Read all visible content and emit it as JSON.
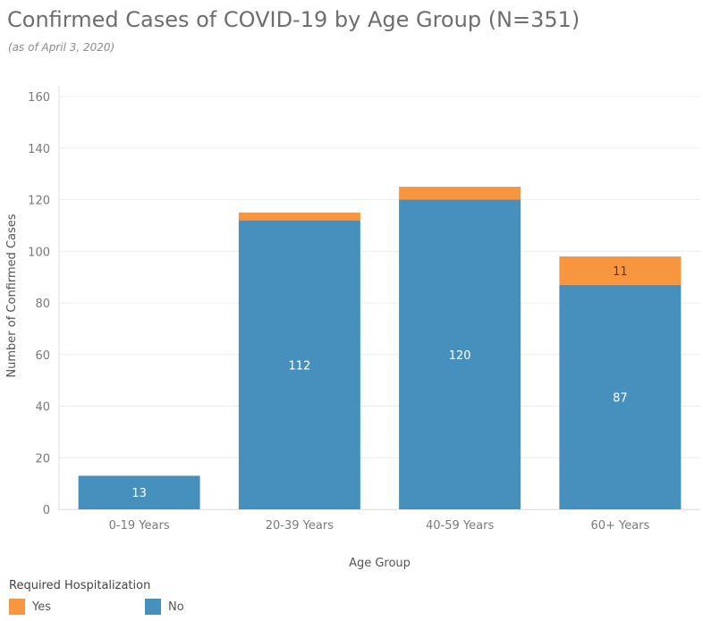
{
  "header": {
    "title": "Confirmed Cases of COVID-19 by Age Group (N=351)",
    "subtitle": "(as of April 3, 2020)"
  },
  "legend": {
    "title": "Required Hospitalization",
    "items": [
      {
        "label": "Yes",
        "color": "#f7963f"
      },
      {
        "label": "No",
        "color": "#4590bc"
      }
    ]
  },
  "colors": {
    "yes": "#f7963f",
    "no": "#4590bc",
    "grid": "#ececec"
  },
  "chart_data": {
    "type": "bar",
    "stacked": true,
    "title": "Confirmed Cases of COVID-19 by Age Group (N=351)",
    "subtitle": "(as of April 3, 2020)",
    "xlabel": "Age Group",
    "ylabel": "Number of Confirmed Cases",
    "categories": [
      "0-19 Years",
      "20-39 Years",
      "40-59 Years",
      "60+ Years"
    ],
    "series": [
      {
        "name": "No",
        "values": [
          13,
          112,
          120,
          87
        ]
      },
      {
        "name": "Yes",
        "values": [
          0,
          3,
          5,
          11
        ]
      }
    ],
    "data_labels": {
      "No": [
        "13",
        "112",
        "120",
        "87"
      ],
      "Yes": [
        "",
        "",
        "",
        "11"
      ]
    },
    "ylim": [
      0,
      160
    ],
    "yticks": [
      0,
      20,
      40,
      60,
      80,
      100,
      120,
      140,
      160
    ],
    "grid": true,
    "legend_position": "bottom-left"
  }
}
